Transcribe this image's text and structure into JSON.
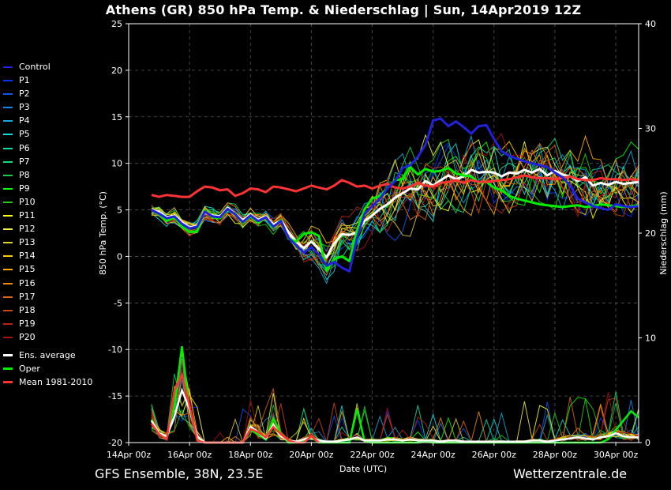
{
  "title": "Athens  (GR)  850 hPa Temp. & Niederschlag | Sun, 14Apr2019 12Z",
  "footer": {
    "left": "GFS Ensemble, 38N, 23.5E",
    "right": "Wetterzentrale.de"
  },
  "chart_data": {
    "type": "line",
    "title": "Athens  (GR)  850 hPa Temp. & Niederschlag | Sun, 14Apr2019 12Z",
    "xlabel": "Date (UTC)",
    "ylabel": "850 hPa Temp. (°C)",
    "y2label": "Niederschlag (mm)",
    "xlim": [
      0,
      16.75
    ],
    "ylim": [
      -20,
      25
    ],
    "y2lim": [
      0,
      40
    ],
    "x_ticks": [
      {
        "x": 0,
        "label": "14Apr 00z"
      },
      {
        "x": 2,
        "label": "16Apr 00z"
      },
      {
        "x": 4,
        "label": "18Apr 00z"
      },
      {
        "x": 6,
        "label": "20Apr 00z"
      },
      {
        "x": 8,
        "label": "22Apr 00z"
      },
      {
        "x": 10,
        "label": "24Apr 00z"
      },
      {
        "x": 12,
        "label": "26Apr 00z"
      },
      {
        "x": 14,
        "label": "28Apr 00z"
      },
      {
        "x": 16,
        "label": "30Apr 00z"
      }
    ],
    "y_ticks": [
      25,
      20,
      15,
      10,
      5,
      0,
      -5,
      -10,
      -15,
      -20
    ],
    "y2_ticks": [
      40,
      30,
      20,
      10,
      0
    ],
    "grid": true,
    "legend_position": "left",
    "x_units": "days since 14Apr 00z",
    "legend": [
      {
        "name": "Control",
        "color": "#2222dd"
      },
      {
        "name": "P1",
        "color": "#0033ff"
      },
      {
        "name": "P2",
        "color": "#1155ee"
      },
      {
        "name": "P3",
        "color": "#1188ee"
      },
      {
        "name": "P4",
        "color": "#11aadd"
      },
      {
        "name": "P5",
        "color": "#11dddd"
      },
      {
        "name": "P6",
        "color": "#11ddaa"
      },
      {
        "name": "P7",
        "color": "#11dd77"
      },
      {
        "name": "P8",
        "color": "#11cc44"
      },
      {
        "name": "P9",
        "color": "#00ff00"
      },
      {
        "name": "P10",
        "color": "#22cc11"
      },
      {
        "name": "P11",
        "color": "#ffff00"
      },
      {
        "name": "P12",
        "color": "#eeee44"
      },
      {
        "name": "P13",
        "color": "#ddcc33"
      },
      {
        "name": "P14",
        "color": "#ffcc00"
      },
      {
        "name": "P15",
        "color": "#ffaa00"
      },
      {
        "name": "P16",
        "color": "#ee8800"
      },
      {
        "name": "P17",
        "color": "#dd6611"
      },
      {
        "name": "P18",
        "color": "#cc4411"
      },
      {
        "name": "P19",
        "color": "#bb2211"
      },
      {
        "name": "P20",
        "color": "#aa1111"
      },
      {
        "name": "Ens. average",
        "color": "#ffffff",
        "thick": true
      },
      {
        "name": "Oper",
        "color": "#00ee00",
        "thick": true
      },
      {
        "name": "Mean 1981-2010",
        "color": "#ff3333",
        "thick": true
      }
    ],
    "series": [
      {
        "name": "Ens. average",
        "color": "#ffffff",
        "width": 3,
        "x": [
          0.75,
          1,
          1.25,
          1.5,
          1.75,
          2,
          2.25,
          2.5,
          2.75,
          3,
          3.25,
          3.5,
          3.75,
          4,
          4.25,
          4.5,
          4.75,
          5,
          5.25,
          5.5,
          5.75,
          6,
          6.25,
          6.5,
          6.75,
          7,
          7.25,
          7.5,
          7.75,
          8,
          8.25,
          8.5,
          8.75,
          9,
          9.25,
          9.5,
          9.75,
          10,
          10.25,
          10.5,
          10.75,
          11,
          11.25,
          11.5,
          11.75,
          12,
          12.25,
          12.5,
          12.75,
          13,
          13.25,
          13.5,
          13.75,
          14,
          14.25,
          14.5,
          14.75,
          15,
          15.25,
          15.5,
          15.75,
          16,
          16.25,
          16.5,
          16.75
        ],
        "y": [
          5,
          4.8,
          4.2,
          4.4,
          3.7,
          3.1,
          3.3,
          4.7,
          4.4,
          4.3,
          5.2,
          4.6,
          3.9,
          4.5,
          3.9,
          4.3,
          3.4,
          3.9,
          2.6,
          1.6,
          0.9,
          1.6,
          0.8,
          -0.1,
          1.4,
          2.4,
          2.3,
          2.6,
          3.8,
          4.4,
          5.1,
          5.6,
          6.3,
          6.8,
          7.3,
          7.2,
          8.1,
          7.6,
          8.2,
          8.7,
          8.3,
          8.6,
          9.3,
          9.0,
          9.1,
          9.0,
          8.6,
          9.0,
          8.9,
          9.3,
          9.0,
          9.4,
          8.7,
          9.2,
          8.8,
          8.6,
          8.1,
          8.5,
          7.6,
          7.9,
          7.7,
          8.0,
          7.8,
          7.9,
          8.0
        ]
      },
      {
        "name": "Oper",
        "color": "#00ee00",
        "width": 3,
        "x": [
          0.75,
          1,
          1.25,
          1.5,
          1.75,
          2,
          2.25,
          2.5,
          2.75,
          3,
          3.25,
          3.5,
          3.75,
          4,
          4.25,
          4.5,
          4.75,
          5,
          5.25,
          5.5,
          5.75,
          6,
          6.25,
          6.5,
          6.75,
          7,
          7.25,
          7.5,
          7.75,
          8,
          8.25,
          8.5,
          8.75,
          9,
          9.25,
          9.5,
          9.75,
          10,
          10.25,
          10.5,
          10.75,
          11,
          11.25,
          11.5,
          11.75,
          12,
          12.25,
          12.5,
          12.75,
          13,
          13.25,
          13.5,
          13.75,
          14,
          14.25,
          14.5,
          14.75,
          15,
          15.25,
          15.5,
          15.75,
          16,
          16.25,
          16.5,
          16.75
        ],
        "y": [
          5,
          4.5,
          3.8,
          4.2,
          3.2,
          2.6,
          2.7,
          4.9,
          4.2,
          4.1,
          5.0,
          4.6,
          3.6,
          4.3,
          3.6,
          4.2,
          3.1,
          3.9,
          1.9,
          1.6,
          2.4,
          2.6,
          2.2,
          -1.5,
          -0.3,
          0,
          -0.5,
          2.8,
          5.1,
          6.2,
          6.5,
          7.3,
          8.2,
          8.3,
          9.6,
          8.8,
          9.4,
          9.1,
          9.2,
          9.5,
          8.9,
          8.7,
          8.6,
          7.9,
          8.0,
          7.4,
          7.1,
          6.5,
          6.2,
          6.0,
          5.8,
          5.6,
          5.5,
          5.4,
          5.3,
          5.4,
          5.5,
          5.3,
          5.4,
          5.6,
          5.5,
          5.4,
          5.3,
          5.4,
          5.5
        ]
      },
      {
        "name": "Mean 1981-2010",
        "color": "#ff3333",
        "width": 3,
        "x": [
          0.75,
          1,
          1.25,
          1.5,
          1.75,
          2,
          2.25,
          2.5,
          2.75,
          3,
          3.25,
          3.5,
          3.75,
          4,
          4.25,
          4.5,
          4.75,
          5,
          5.25,
          5.5,
          5.75,
          6,
          6.25,
          6.5,
          6.75,
          7,
          7.25,
          7.5,
          7.75,
          8,
          8.25,
          8.5,
          8.75,
          9,
          9.25,
          9.5,
          9.75,
          10,
          10.25,
          10.5,
          10.75,
          11,
          11.25,
          11.5,
          11.75,
          12,
          12.25,
          12.5,
          12.75,
          13,
          13.25,
          13.5,
          13.75,
          14,
          14.25,
          14.5,
          14.75,
          15,
          15.25,
          15.5,
          15.75,
          16,
          16.25,
          16.5,
          16.75
        ],
        "y": [
          6.6,
          6.4,
          6.6,
          6.5,
          6.4,
          6.4,
          7.0,
          7.5,
          7.4,
          7.1,
          7.2,
          6.5,
          6.8,
          7.3,
          7.2,
          6.9,
          7.5,
          7.4,
          7.2,
          7.0,
          7.3,
          7.6,
          7.4,
          7.2,
          7.6,
          8.2,
          7.9,
          7.5,
          7.6,
          7.3,
          7.6,
          7.8,
          7.4,
          7.3,
          7.5,
          7.9,
          7.6,
          7.5,
          7.9,
          8.0,
          8.2,
          7.9,
          8.2,
          8.0,
          8.0,
          8.1,
          8.2,
          8.3,
          8.5,
          8.7,
          8.5,
          8.4,
          8.4,
          8.3,
          8.4,
          8.6,
          8.3,
          8.2,
          8.2,
          8.4,
          8.3,
          8.3,
          8.2,
          8.3,
          8.2
        ]
      },
      {
        "name": "Control",
        "color": "#2222dd",
        "width": 3,
        "x": [
          0.75,
          1,
          1.25,
          1.5,
          1.75,
          2,
          2.25,
          2.5,
          2.75,
          3,
          3.25,
          3.5,
          3.75,
          4,
          4.25,
          4.5,
          4.75,
          5,
          5.25,
          5.5,
          5.75,
          6,
          6.25,
          6.5,
          6.75,
          7,
          7.25,
          7.5,
          7.75,
          8,
          8.25,
          8.5,
          8.75,
          9,
          9.25,
          9.5,
          9.75,
          10,
          10.25,
          10.5,
          10.75,
          11,
          11.25,
          11.5,
          11.75,
          12,
          12.25,
          12.5,
          12.75,
          13,
          13.25,
          13.5,
          13.75,
          14,
          14.25,
          14.5,
          14.75,
          15,
          15.25,
          15.5,
          15.75,
          16,
          16.25,
          16.5,
          16.75
        ],
        "y": [
          5,
          4.6,
          4.1,
          4.3,
          3.5,
          3.0,
          3.2,
          4.8,
          4.3,
          4.2,
          5.1,
          4.5,
          3.7,
          4.4,
          3.8,
          4.2,
          3.2,
          3.8,
          2.0,
          1.2,
          0.4,
          1.0,
          0.2,
          -1.0,
          -0.6,
          -1.2,
          -1.6,
          2.0,
          4.6,
          5.4,
          6.2,
          7.3,
          8.1,
          9.5,
          9.8,
          10.7,
          12.0,
          14.6,
          14.8,
          14.0,
          14.5,
          13.9,
          13.2,
          14.0,
          14.1,
          12.6,
          11.3,
          10.8,
          10.5,
          10.2,
          10.0,
          9.8,
          9.6,
          9.0,
          8.5,
          7.6,
          6.2,
          5.8,
          5.4,
          5.2,
          5.0,
          5.6,
          5.4,
          5.3,
          5.4
        ]
      }
    ],
    "band_series": {
      "note": "Individual members P1-P20 shown as thin lines spread around the ensemble mean"
    },
    "precip_series": [
      {
        "name": "Oper",
        "color": "#00ee00",
        "x": [
          0.75,
          1,
          1.25,
          1.5,
          1.75,
          2,
          2.25,
          2.5,
          2.75,
          3,
          3.25,
          3.5,
          3.75,
          4,
          4.25,
          4.5,
          4.75,
          5,
          5.25,
          5.5,
          5.75,
          6,
          6.25,
          6.5,
          6.75,
          7,
          7.25,
          7.5,
          7.75,
          8,
          8.25,
          8.5,
          8.75,
          9,
          9.25,
          9.5,
          9.75,
          10,
          10.25,
          10.5,
          10.75,
          11,
          11.25,
          11.5,
          11.75,
          12,
          12.25,
          12.5,
          12.75,
          13,
          13.25,
          13.5,
          13.75,
          14,
          14.25,
          14.5,
          14.75,
          15,
          15.25,
          15.5,
          15.75,
          16,
          16.25,
          16.5,
          16.75
        ],
        "y": [
          2.2,
          0.8,
          0.4,
          3.5,
          9.2,
          3.0,
          0.5,
          0,
          0,
          0,
          0,
          0,
          0,
          1.2,
          0.8,
          0.3,
          2.3,
          0.8,
          0,
          0,
          0.1,
          0.5,
          0,
          0,
          0,
          0,
          0,
          3.2,
          0.1,
          0,
          0,
          0,
          0,
          0,
          0,
          0,
          0.1,
          0,
          0,
          0,
          0,
          0,
          0,
          0,
          0,
          0,
          0,
          0,
          0,
          0,
          0,
          0,
          0,
          0,
          0,
          0,
          0,
          0,
          0,
          0,
          0.3,
          1.2,
          2.1,
          3.0,
          2.4
        ]
      },
      {
        "name": "Ens. average",
        "color": "#ffffff",
        "x": [
          0.75,
          1,
          1.25,
          1.5,
          1.75,
          2,
          2.25,
          2.5,
          2.75,
          3,
          3.25,
          3.5,
          3.75,
          4,
          4.25,
          4.5,
          4.75,
          5,
          5.25,
          5.5,
          5.75,
          6,
          6.25,
          6.5,
          6.75,
          7,
          7.25,
          7.5,
          7.75,
          8,
          8.25,
          8.5,
          8.75,
          9,
          9.25,
          9.5,
          9.75,
          10,
          10.25,
          10.5,
          10.75,
          11,
          11.25,
          11.5,
          11.75,
          12,
          12.25,
          12.5,
          12.75,
          13,
          13.25,
          13.5,
          13.75,
          14,
          14.25,
          14.5,
          14.75,
          15,
          15.25,
          15.5,
          15.75,
          16,
          16.25,
          16.5,
          16.75
        ],
        "y": [
          2.1,
          0.9,
          0.6,
          2.5,
          5.0,
          3.2,
          0.6,
          0,
          0,
          0,
          0,
          0,
          0,
          1.5,
          1.0,
          0.4,
          1.7,
          0.6,
          0.2,
          0.1,
          0.3,
          0.5,
          0.2,
          0.1,
          0.1,
          0.2,
          0.3,
          0.5,
          0.2,
          0.2,
          0.2,
          0.3,
          0.3,
          0.2,
          0.3,
          0.2,
          0.2,
          0.2,
          0.1,
          0.2,
          0.2,
          0.1,
          0.1,
          0.1,
          0.1,
          0.1,
          0.1,
          0.1,
          0.1,
          0.1,
          0.2,
          0.2,
          0.1,
          0.2,
          0.3,
          0.4,
          0.5,
          0.4,
          0.3,
          0.5,
          0.6,
          0.9,
          0.6,
          0.5,
          0.5
        ]
      },
      {
        "name": "Mean 1981-2010",
        "color": "#ff3333",
        "x": [
          0.75,
          1,
          1.25,
          1.5,
          1.75,
          2,
          2.25,
          2.5,
          2.75,
          3,
          3.25,
          3.5,
          3.75,
          4,
          4.25,
          4.5,
          4.75,
          5,
          5.25,
          5.5,
          5.75,
          6,
          6.25
        ],
        "y": [
          1.8,
          0.8,
          0.3,
          5.0,
          6.5,
          3.5,
          0.2,
          0,
          0,
          0,
          0,
          0,
          0,
          1.3,
          1.0,
          0.5,
          1.5,
          0.8,
          0.2,
          0,
          0,
          0.6,
          0
        ]
      }
    ]
  }
}
